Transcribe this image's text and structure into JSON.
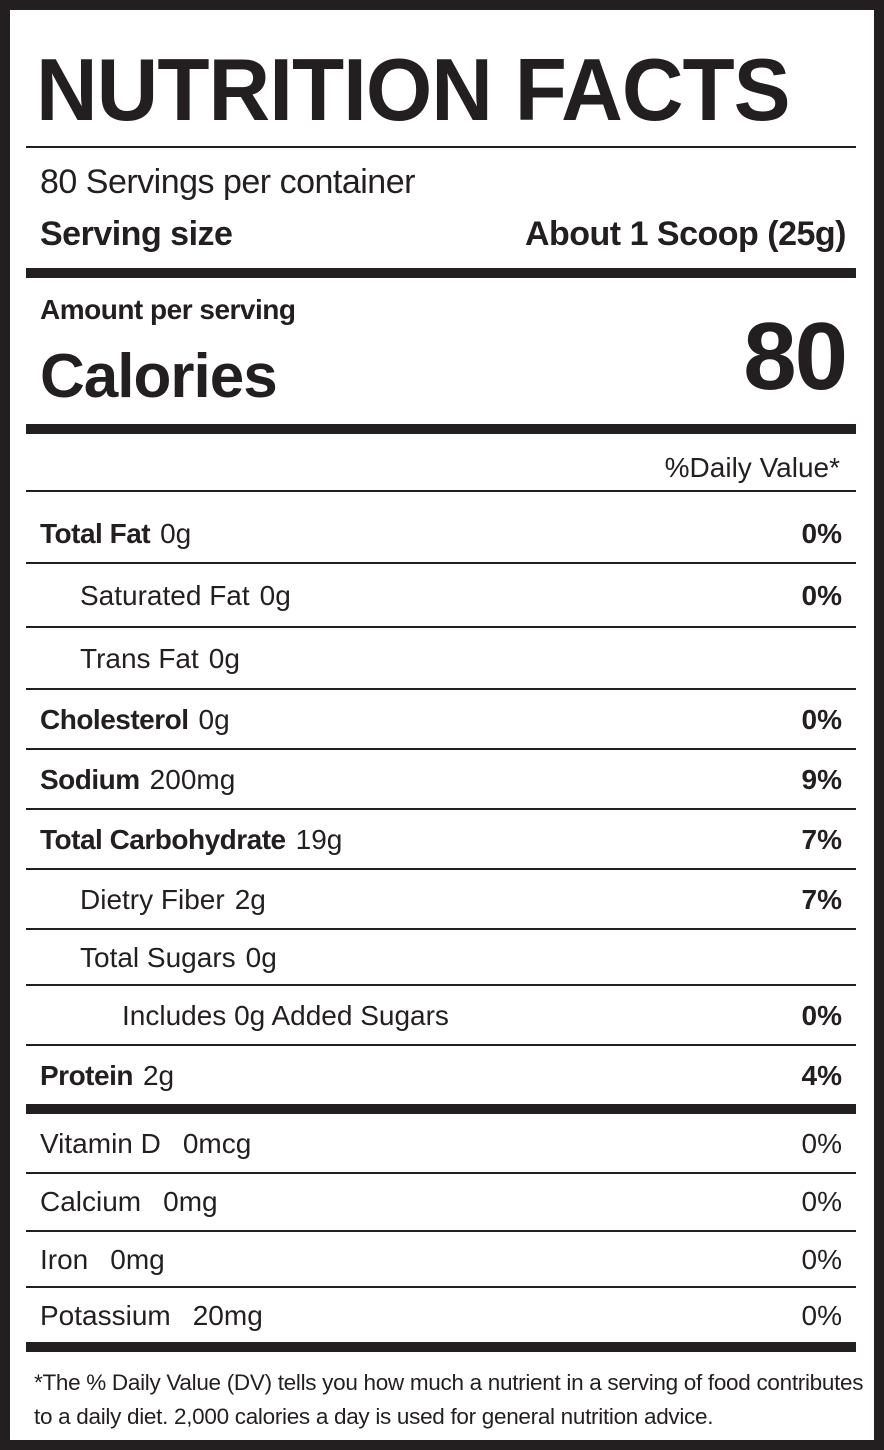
{
  "title": "NUTRITION FACTS",
  "servings_per_container": "80 Servings per container",
  "serving_size": {
    "label": "Serving size",
    "value": "About 1 Scoop (25g)"
  },
  "amount_per_serving": "Amount per serving",
  "calories": {
    "label": "Calories",
    "value": "80"
  },
  "daily_value_header": "%Daily Value*",
  "nutrients": [
    {
      "name": "Total Fat",
      "amount": "0g",
      "dv": "0%"
    },
    {
      "name": "Saturated Fat",
      "amount": "0g",
      "dv": "0%"
    },
    {
      "name": "Trans Fat",
      "amount": "0g",
      "dv": ""
    },
    {
      "name": "Cholesterol",
      "amount": "0g",
      "dv": "0%"
    },
    {
      "name": "Sodium",
      "amount": "200mg",
      "dv": "9%"
    },
    {
      "name": "Total Carbohydrate",
      "amount": "19g",
      "dv": "7%"
    },
    {
      "name": "Dietry Fiber",
      "amount": "2g",
      "dv": "7%"
    },
    {
      "name": "Total Sugars",
      "amount": "0g",
      "dv": ""
    },
    {
      "name": "Includes 0g Added Sugars",
      "amount": "",
      "dv": "0%"
    },
    {
      "name": "Protein",
      "amount": "2g",
      "dv": "4%"
    }
  ],
  "vitamins": [
    {
      "name": "Vitamin D",
      "amount": "0mcg",
      "dv": "0%"
    },
    {
      "name": "Calcium",
      "amount": "0mg",
      "dv": "0%"
    },
    {
      "name": "Iron",
      "amount": "0mg",
      "dv": "0%"
    },
    {
      "name": "Potassium",
      "amount": "20mg",
      "dv": "0%"
    }
  ],
  "footnote": "*The % Daily Value (DV) tells you how much a nutrient in a serving of food contributes to a daily diet. 2,000 calories a day is used for general nutrition advice."
}
